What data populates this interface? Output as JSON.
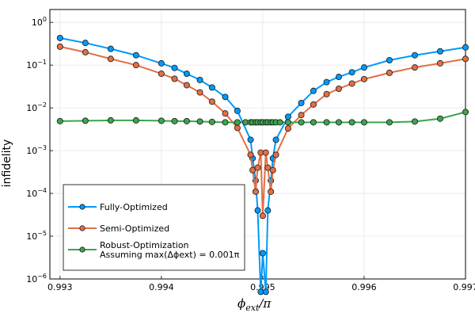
{
  "chart_data": {
    "type": "line",
    "title": "",
    "xlabel": "ϕext/π",
    "ylabel": "infidelity",
    "xlim": [
      0.9929,
      0.997
    ],
    "ylim_log10": [
      -6,
      0.3
    ],
    "yscale": "log",
    "grid": true,
    "legend_position": "bottom-left",
    "x_ticks": [
      0.993,
      0.994,
      0.995,
      0.996,
      0.997
    ],
    "x_tick_labels": [
      "0.993",
      "0.994",
      "0.995",
      "0.996",
      "0.997"
    ],
    "y_ticks_log10": [
      0,
      -1,
      -2,
      -3,
      -4,
      -5,
      -6
    ],
    "series": [
      {
        "name": "Fully-Optimized",
        "color": "#009AFA",
        "x": [
          0.993,
          0.99325,
          0.9935,
          0.99375,
          0.994,
          0.99413,
          0.99425,
          0.99438,
          0.9945,
          0.99463,
          0.99475,
          0.99488,
          0.9949,
          0.99493,
          0.99495,
          0.99498,
          0.995,
          0.99503,
          0.99505,
          0.99508,
          0.9951,
          0.99513,
          0.99525,
          0.99538,
          0.9955,
          0.99563,
          0.99575,
          0.99588,
          0.996,
          0.99625,
          0.9965,
          0.99675,
          0.997
        ],
        "y": [
          0.43,
          0.33,
          0.24,
          0.17,
          0.11,
          0.086,
          0.063,
          0.045,
          0.03,
          0.018,
          0.0085,
          0.0018,
          0.00066,
          0.0002,
          4e-05,
          5e-07,
          4e-06,
          5e-07,
          4e-05,
          0.0002,
          0.00066,
          0.0018,
          0.0062,
          0.013,
          0.025,
          0.04,
          0.053,
          0.068,
          0.088,
          0.13,
          0.17,
          0.21,
          0.26
        ]
      },
      {
        "name": "Semi-Optimized",
        "color": "#E26F46",
        "x": [
          0.993,
          0.99325,
          0.9935,
          0.99375,
          0.994,
          0.99413,
          0.99425,
          0.99438,
          0.9945,
          0.99463,
          0.99475,
          0.99488,
          0.9949,
          0.99493,
          0.99495,
          0.99498,
          0.995,
          0.99503,
          0.99505,
          0.99508,
          0.9951,
          0.99513,
          0.99525,
          0.99538,
          0.9955,
          0.99563,
          0.99575,
          0.99588,
          0.996,
          0.99625,
          0.9965,
          0.99675,
          0.997
        ],
        "y": [
          0.27,
          0.2,
          0.14,
          0.1,
          0.063,
          0.048,
          0.034,
          0.023,
          0.014,
          0.0074,
          0.0034,
          0.0008,
          0.00035,
          0.00011,
          0.0004,
          0.0009,
          3e-05,
          0.0009,
          0.0004,
          0.00011,
          0.00035,
          0.0008,
          0.0033,
          0.0068,
          0.012,
          0.021,
          0.028,
          0.037,
          0.047,
          0.066,
          0.088,
          0.11,
          0.14
        ]
      },
      {
        "name": "Robust-Optimization",
        "name_line2": "Assuming max(Δϕext) = 0.001π",
        "color": "#3DA44D",
        "x": [
          0.993,
          0.99325,
          0.9935,
          0.99375,
          0.994,
          0.99413,
          0.99425,
          0.99438,
          0.9945,
          0.99463,
          0.99475,
          0.99483,
          0.99488,
          0.9949,
          0.99493,
          0.99495,
          0.99498,
          0.995,
          0.99503,
          0.99505,
          0.99508,
          0.9951,
          0.99513,
          0.99517,
          0.99525,
          0.99538,
          0.9955,
          0.99563,
          0.99575,
          0.99588,
          0.996,
          0.99625,
          0.9965,
          0.99675,
          0.997
        ],
        "y": [
          0.0049,
          0.005,
          0.0051,
          0.0051,
          0.005,
          0.0049,
          0.0049,
          0.0048,
          0.0047,
          0.0046,
          0.0046,
          0.0046,
          0.0046,
          0.0046,
          0.0046,
          0.0046,
          0.0046,
          0.0046,
          0.0046,
          0.0046,
          0.0046,
          0.0046,
          0.0046,
          0.0046,
          0.0046,
          0.0046,
          0.0046,
          0.0046,
          0.0046,
          0.0046,
          0.0046,
          0.0046,
          0.0048,
          0.0056,
          0.008
        ]
      }
    ]
  }
}
